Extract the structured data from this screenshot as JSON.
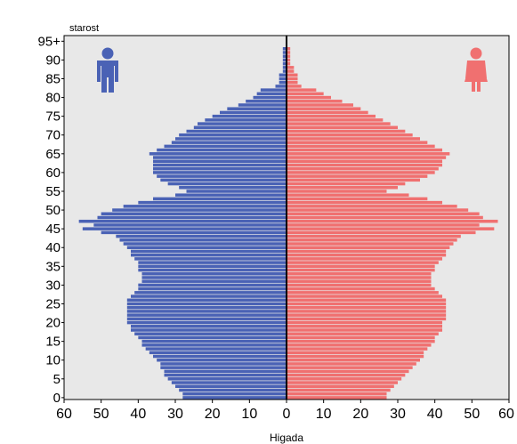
{
  "chart_data": {
    "type": "bar",
    "orientation": "horizontal-pyramid",
    "ylabel": "starost",
    "xlabel": "Higada",
    "xlim": [
      -60,
      60
    ],
    "ylim": [
      0,
      97
    ],
    "x_ticks": [
      60,
      50,
      40,
      30,
      20,
      10,
      0,
      10,
      20,
      30,
      40,
      50,
      60
    ],
    "y_ticks": [
      "0",
      "5",
      "10",
      "15",
      "20",
      "25",
      "30",
      "35",
      "40",
      "45",
      "50",
      "55",
      "60",
      "65",
      "70",
      "75",
      "80",
      "85",
      "90",
      "95+"
    ],
    "colors": {
      "male": "#4a62b5",
      "female": "#f07070",
      "background": "#e8e8e8",
      "axis": "#000000"
    },
    "icons": {
      "left": "male-figure-icon",
      "right": "female-figure-icon"
    },
    "ages": [
      0,
      1,
      2,
      3,
      4,
      5,
      6,
      7,
      8,
      9,
      10,
      11,
      12,
      13,
      14,
      15,
      16,
      17,
      18,
      19,
      20,
      21,
      22,
      23,
      24,
      25,
      26,
      27,
      28,
      29,
      30,
      31,
      32,
      33,
      34,
      35,
      36,
      37,
      38,
      39,
      40,
      41,
      42,
      43,
      44,
      45,
      46,
      47,
      48,
      49,
      50,
      51,
      52,
      53,
      54,
      55,
      56,
      57,
      58,
      59,
      60,
      61,
      62,
      63,
      64,
      65,
      66,
      67,
      68,
      69,
      70,
      71,
      72,
      73,
      74,
      75,
      76,
      77,
      78,
      79,
      80,
      81,
      82,
      83,
      84,
      85,
      86,
      87,
      88,
      89,
      90,
      91,
      92,
      93,
      94,
      95
    ],
    "series": [
      {
        "side": "left",
        "values": [
          28,
          28,
          29,
          30,
          31,
          32,
          33,
          33,
          34,
          34,
          35,
          36,
          37,
          38,
          39,
          39,
          40,
          41,
          42,
          42,
          43,
          43,
          43,
          43,
          43,
          43,
          43,
          42,
          41,
          40,
          40,
          39,
          39,
          39,
          40,
          40,
          40,
          41,
          42,
          42,
          43,
          44,
          45,
          46,
          50,
          55,
          52,
          56,
          51,
          50,
          47,
          44,
          40,
          36,
          30,
          27,
          29,
          32,
          34,
          35,
          36,
          36,
          36,
          36,
          36,
          37,
          35,
          33,
          31,
          30,
          29,
          27,
          25,
          24,
          22,
          20,
          18,
          16,
          13,
          11,
          9,
          8,
          7,
          3,
          2,
          2,
          2,
          1,
          1,
          1,
          1,
          1,
          1,
          1,
          0,
          0
        ]
      },
      {
        "side": "right",
        "values": [
          27,
          27,
          28,
          29,
          30,
          31,
          32,
          33,
          34,
          35,
          36,
          37,
          37,
          38,
          39,
          40,
          40,
          41,
          42,
          42,
          42,
          43,
          43,
          43,
          43,
          43,
          43,
          42,
          41,
          40,
          39,
          39,
          39,
          39,
          40,
          40,
          41,
          42,
          43,
          43,
          44,
          45,
          46,
          47,
          51,
          56,
          52,
          57,
          53,
          52,
          49,
          46,
          42,
          38,
          33,
          27,
          30,
          32,
          36,
          38,
          40,
          41,
          42,
          42,
          43,
          44,
          42,
          40,
          38,
          36,
          34,
          32,
          30,
          28,
          26,
          24,
          22,
          20,
          18,
          15,
          12,
          10,
          8,
          4,
          3,
          3,
          3,
          2,
          2,
          1,
          1,
          1,
          1,
          1,
          0,
          0
        ]
      }
    ]
  }
}
